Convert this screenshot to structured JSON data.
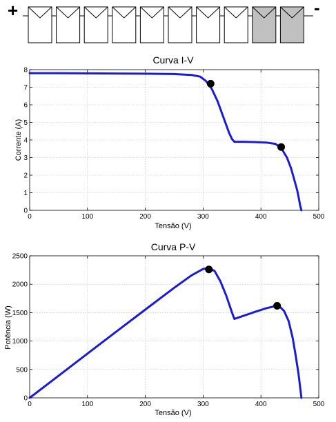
{
  "string_diagram": {
    "plus_label": "+",
    "minus_label": "-",
    "module_count": 10,
    "shaded_modules": [
      8,
      9
    ],
    "shaded_color": "#c0c0c0",
    "unshaded_color": "#ffffff"
  },
  "chart_data": [
    {
      "type": "line",
      "title": "Curva I-V",
      "xlabel": "Tensão (V)",
      "ylabel": "Corrente (A)",
      "xlim": [
        0,
        500
      ],
      "ylim": [
        0,
        8
      ],
      "xticks": [
        0,
        100,
        200,
        300,
        400,
        500
      ],
      "yticks": [
        0,
        1,
        2,
        3,
        4,
        5,
        6,
        7,
        8
      ],
      "grid": true,
      "line_color": "#1a1adb",
      "series": [
        {
          "x": [
            0,
            50,
            100,
            150,
            200,
            250,
            280,
            295,
            305,
            315,
            325,
            335,
            345,
            350,
            354,
            370,
            390,
            410,
            425,
            435,
            445,
            452,
            458,
            463,
            466,
            468,
            470
          ],
          "y": [
            7.8,
            7.8,
            7.79,
            7.78,
            7.77,
            7.75,
            7.7,
            7.6,
            7.35,
            6.9,
            6.2,
            5.3,
            4.4,
            4.05,
            3.9,
            3.9,
            3.88,
            3.85,
            3.78,
            3.55,
            3.0,
            2.4,
            1.7,
            1.1,
            0.6,
            0.25,
            0
          ]
        }
      ],
      "markers": [
        {
          "x": 313,
          "y": 7.2
        },
        {
          "x": 435,
          "y": 3.6
        }
      ]
    },
    {
      "type": "line",
      "title": "Curva P-V",
      "xlabel": "Tensão (V)",
      "ylabel": "Potência (W)",
      "xlim": [
        0,
        500
      ],
      "ylim": [
        0,
        2500
      ],
      "xticks": [
        0,
        100,
        200,
        300,
        400,
        500
      ],
      "yticks": [
        0,
        500,
        1000,
        1500,
        2000,
        2500
      ],
      "grid": true,
      "line_color": "#1a1adb",
      "series": [
        {
          "x": [
            0,
            50,
            100,
            150,
            200,
            250,
            280,
            300,
            310,
            320,
            330,
            340,
            350,
            354,
            370,
            390,
            410,
            425,
            432,
            440,
            448,
            455,
            460,
            465,
            470
          ],
          "y": [
            0,
            390,
            779,
            1167,
            1554,
            1938,
            2156,
            2268,
            2290,
            2230,
            2050,
            1800,
            1500,
            1390,
            1445,
            1515,
            1580,
            1615,
            1610,
            1530,
            1350,
            1050,
            750,
            420,
            0
          ]
        }
      ],
      "markers": [
        {
          "x": 310,
          "y": 2260
        },
        {
          "x": 428,
          "y": 1620
        }
      ]
    }
  ]
}
